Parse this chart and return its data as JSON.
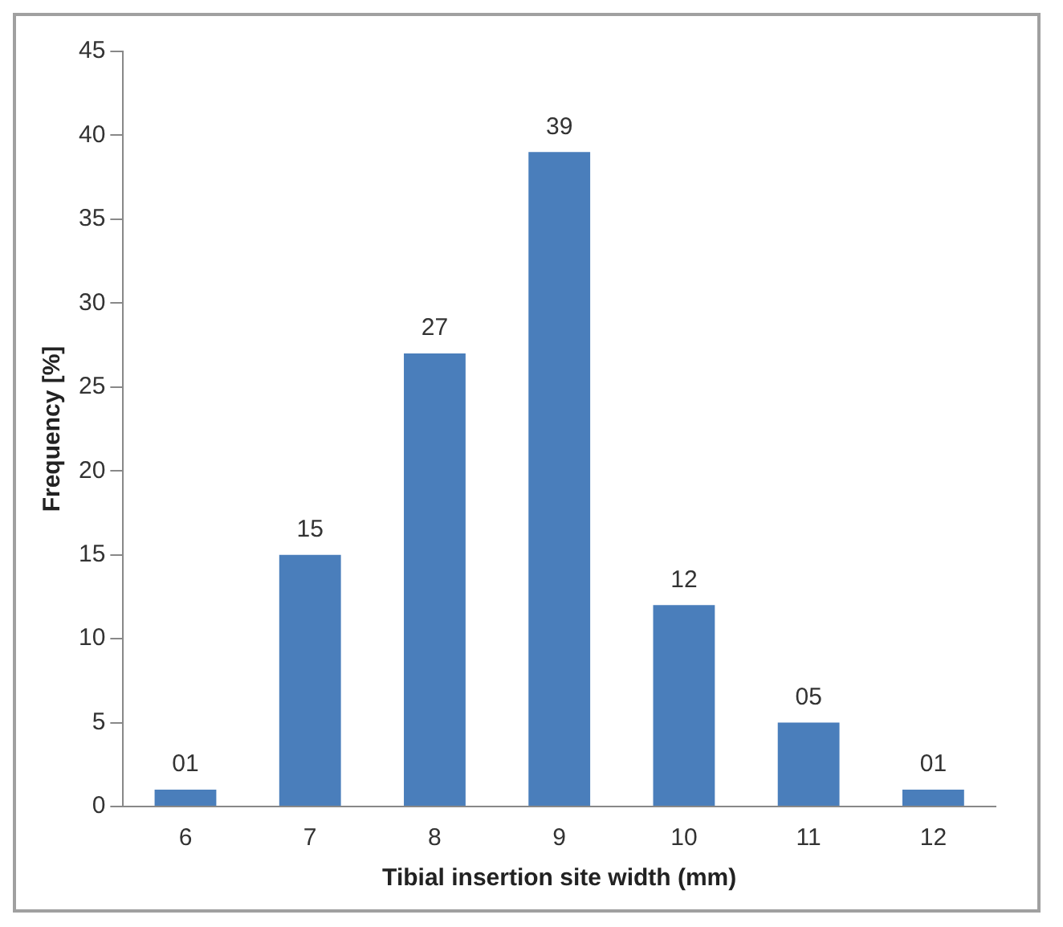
{
  "chart_data": {
    "type": "bar",
    "xlabel": "Tibial insertion site width (mm)",
    "ylabel": "Frequency [%]",
    "categories": [
      "6",
      "7",
      "8",
      "9",
      "10",
      "11",
      "12"
    ],
    "values": [
      1,
      15,
      27,
      39,
      12,
      5,
      1
    ],
    "value_labels": [
      "01",
      "15",
      "27",
      "39",
      "12",
      "05",
      "01"
    ],
    "color": "#4a7ebb",
    "ylim": [
      0,
      45
    ],
    "yticks": [
      0,
      5,
      10,
      15,
      20,
      25,
      30,
      35,
      40,
      45
    ],
    "grid": false,
    "legend": false
  }
}
